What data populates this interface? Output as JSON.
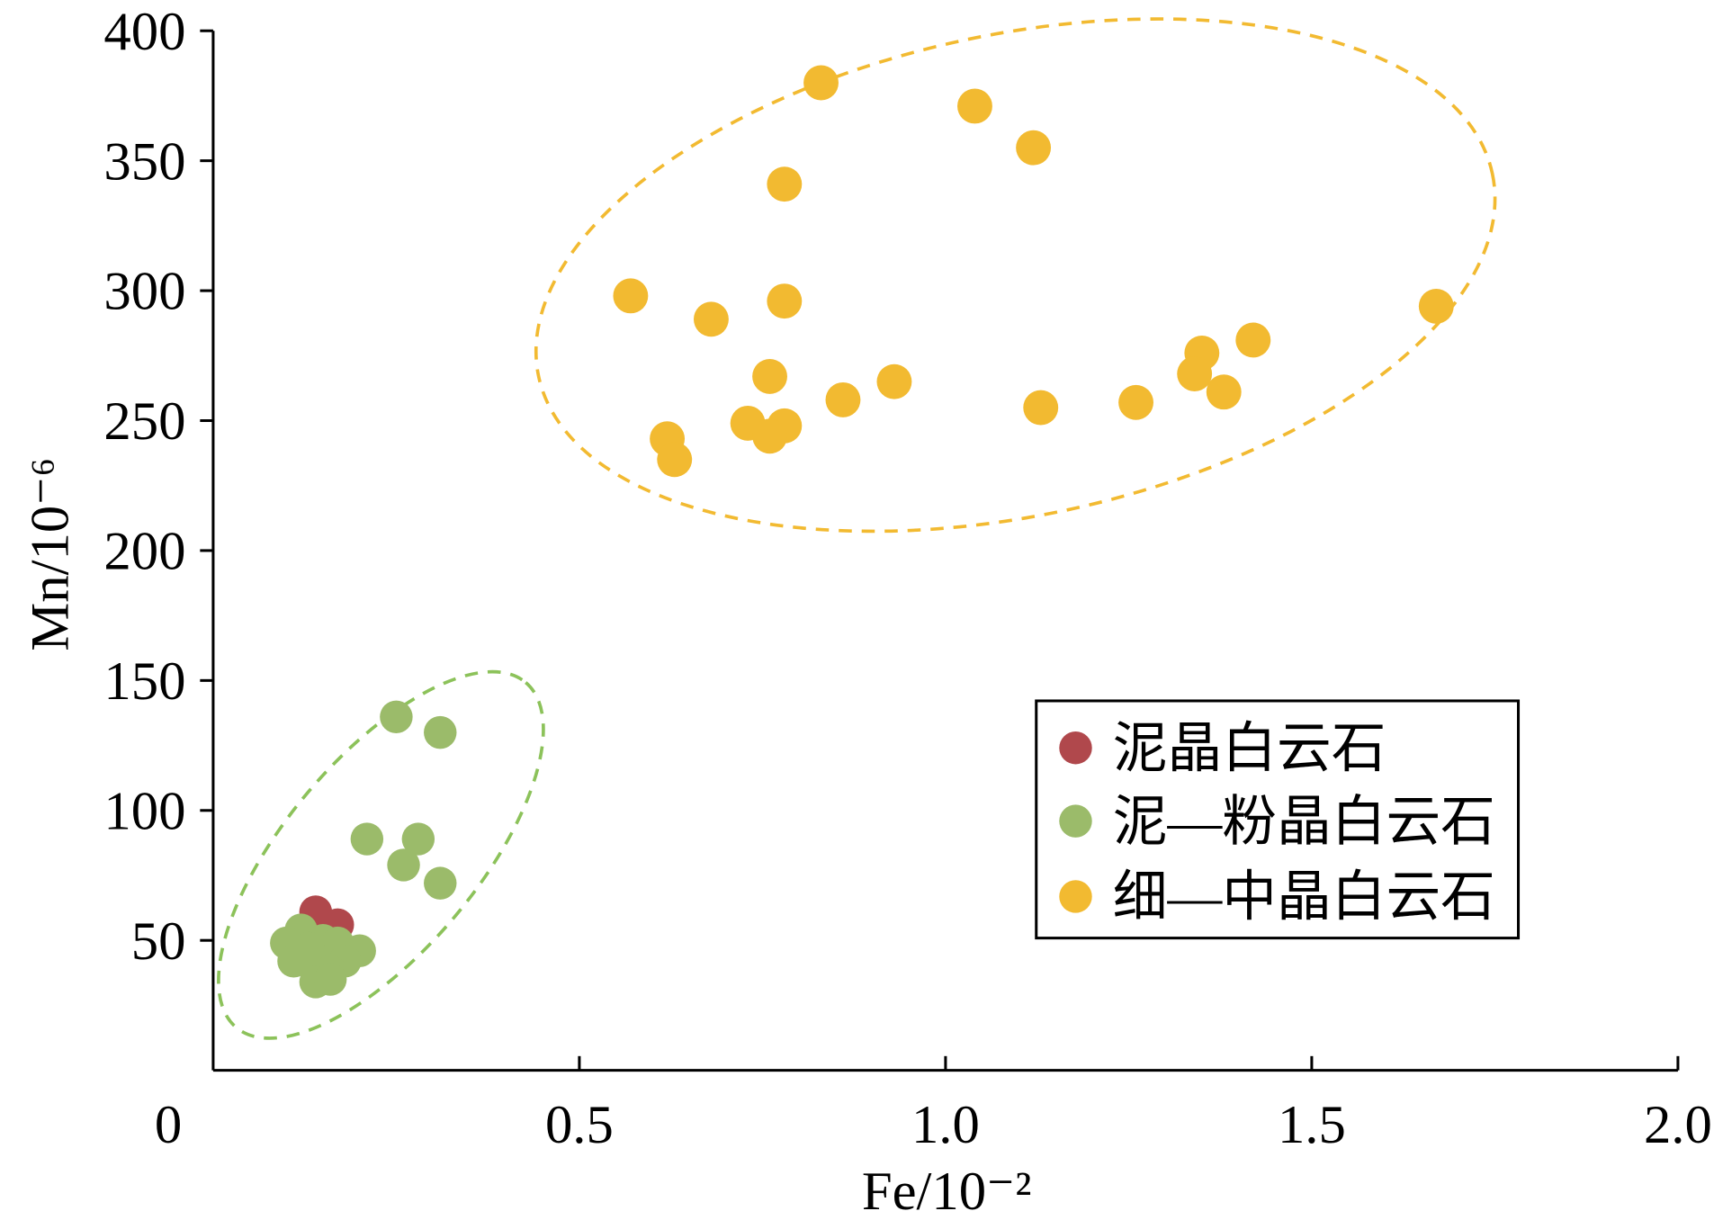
{
  "chart_data": {
    "type": "scatter",
    "xlabel": "Fe/10⁻²",
    "ylabel": "Mn/10⁻⁶",
    "xlim": [
      0,
      2.0
    ],
    "ylim": [
      0,
      400
    ],
    "grid": false,
    "legend": "lower-right",
    "x_ticks": [
      {
        "value": 0,
        "label": "0"
      },
      {
        "value": 0.5,
        "label": "0.5"
      },
      {
        "value": 1.0,
        "label": "1.0"
      },
      {
        "value": 1.5,
        "label": "1.5"
      },
      {
        "value": 2.0,
        "label": "2.0"
      }
    ],
    "y_ticks": [
      {
        "value": 50,
        "label": "50"
      },
      {
        "value": 100,
        "label": "100"
      },
      {
        "value": 150,
        "label": "150"
      },
      {
        "value": 200,
        "label": "200"
      },
      {
        "value": 250,
        "label": "250"
      },
      {
        "value": 300,
        "label": "300"
      },
      {
        "value": 350,
        "label": "350"
      },
      {
        "value": 400,
        "label": "400"
      }
    ],
    "series": [
      {
        "name": "泥晶白云石",
        "color": "#B0484C",
        "points": [
          [
            0.14,
            61
          ],
          [
            0.17,
            56
          ]
        ]
      },
      {
        "name": "泥—粉晶白云石",
        "color": "#9BBB6A",
        "points": [
          [
            0.25,
            136
          ],
          [
            0.31,
            130
          ],
          [
            0.21,
            89
          ],
          [
            0.28,
            89
          ],
          [
            0.26,
            79
          ],
          [
            0.31,
            72
          ],
          [
            0.12,
            54
          ],
          [
            0.1,
            49
          ],
          [
            0.15,
            50
          ],
          [
            0.17,
            49
          ],
          [
            0.13,
            47
          ],
          [
            0.2,
            46
          ],
          [
            0.18,
            42
          ],
          [
            0.11,
            42
          ],
          [
            0.14,
            42
          ],
          [
            0.16,
            38
          ],
          [
            0.14,
            34
          ],
          [
            0.16,
            35
          ]
        ]
      },
      {
        "name": "细—中晶白云石",
        "color": "#F2BA31",
        "points": [
          [
            0.83,
            380
          ],
          [
            1.04,
            371
          ],
          [
            1.12,
            355
          ],
          [
            0.78,
            341
          ],
          [
            0.57,
            298
          ],
          [
            0.68,
            289
          ],
          [
            0.78,
            296
          ],
          [
            1.67,
            294
          ],
          [
            1.42,
            281
          ],
          [
            1.35,
            276
          ],
          [
            1.34,
            268
          ],
          [
            1.38,
            261
          ],
          [
            0.76,
            267
          ],
          [
            0.93,
            265
          ],
          [
            0.86,
            258
          ],
          [
            1.26,
            257
          ],
          [
            1.13,
            255
          ],
          [
            0.73,
            249
          ],
          [
            0.78,
            248
          ],
          [
            0.76,
            244
          ],
          [
            0.62,
            243
          ],
          [
            0.63,
            235
          ]
        ]
      }
    ]
  }
}
